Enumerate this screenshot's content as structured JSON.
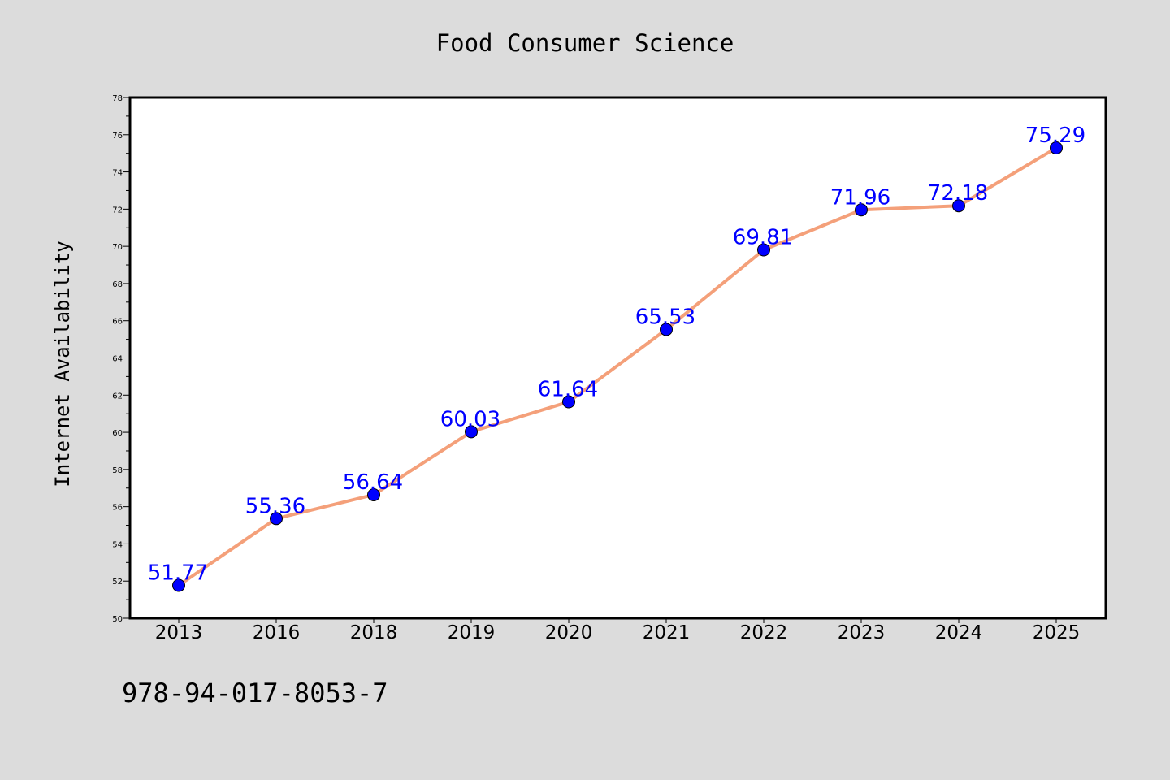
{
  "chart_data": {
    "type": "line",
    "title": "Food Consumer Science",
    "xlabel": "",
    "ylabel": "Internet Availability",
    "categories": [
      "2013",
      "2016",
      "2018",
      "2019",
      "2020",
      "2021",
      "2022",
      "2023",
      "2024",
      "2025"
    ],
    "series": [
      {
        "values": [
          51.77,
          55.36,
          56.64,
          60.03,
          61.64,
          65.53,
          69.81,
          71.96,
          72.18,
          75.29
        ]
      }
    ],
    "data_labels": [
      "51.77",
      "55.36",
      "56.64",
      "60.03",
      "61.64",
      "65.53",
      "69.81",
      "71.96",
      "72.18",
      "75.29"
    ],
    "ylim": [
      50,
      78
    ],
    "yticks": [
      50,
      52,
      54,
      56,
      58,
      60,
      62,
      64,
      66,
      68,
      70,
      72,
      74,
      76,
      78
    ],
    "grid": false,
    "legend": "none",
    "footnote": "978-94-017-8053-7",
    "colors": {
      "background": "#dcdcdc",
      "plot_background": "#ffffff",
      "line": "#f4a07a",
      "marker": "#0000ff",
      "data_label": "#0000ff",
      "text": "#000000"
    }
  }
}
